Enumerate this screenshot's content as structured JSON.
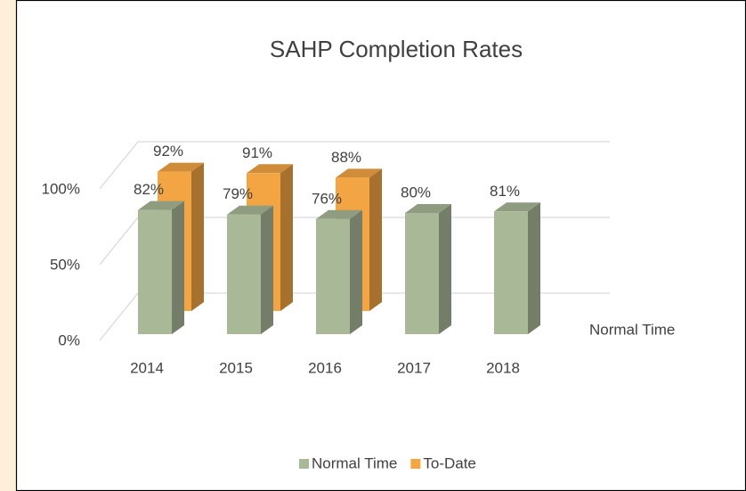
{
  "chart_data": {
    "type": "bar3d",
    "title": "SAHP Completion Rates",
    "categories": [
      "2014",
      "2015",
      "2016",
      "2017",
      "2018"
    ],
    "series": [
      {
        "name": "Normal Time",
        "color": "#a9b897",
        "values": [
          82,
          79,
          76,
          80,
          81
        ],
        "value_labels": [
          "82%",
          "79%",
          "76%",
          "80%",
          "81%"
        ]
      },
      {
        "name": "To-Date",
        "color": "#f4a543",
        "values": [
          92,
          91,
          88,
          null,
          null
        ],
        "value_labels": [
          "92%",
          "91%",
          "88%",
          null,
          null
        ]
      }
    ],
    "ylim": [
      0,
      100
    ],
    "yticks": [
      {
        "value": 0,
        "label": "0%"
      },
      {
        "value": 50,
        "label": "50%"
      },
      {
        "value": 100,
        "label": "100%"
      }
    ],
    "grid": true,
    "legend": "bottom"
  }
}
